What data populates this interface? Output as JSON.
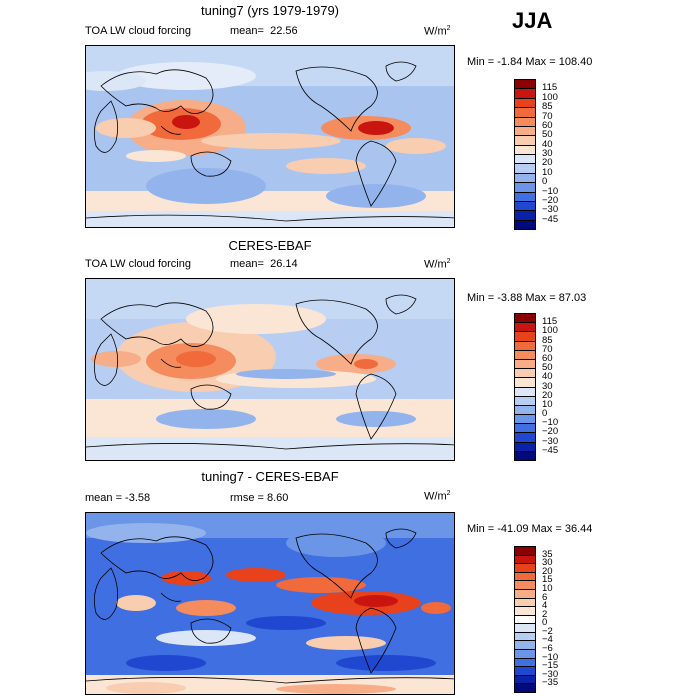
{
  "season": "JJA",
  "panels": [
    {
      "id": "model",
      "title": "tuning7 (yrs 1979-1979)",
      "left_label": "TOA LW cloud forcing",
      "mean_label": "mean=",
      "mean_value": "22.56",
      "units": "W/m",
      "units_sup": "2",
      "minmax": "Min =  -1.84 Max = 108.40"
    },
    {
      "id": "obs",
      "title": "CERES-EBAF",
      "left_label": "TOA LW cloud forcing",
      "mean_label": "mean=",
      "mean_value": "26.14",
      "units": "W/m",
      "units_sup": "2",
      "minmax": "Min =  -3.88 Max =  87.03"
    },
    {
      "id": "diff",
      "title": "tuning7 - CERES-EBAF",
      "left_label": "mean =   -3.58",
      "rmse_label": "rmse =    8.60",
      "units": "W/m",
      "units_sup": "2",
      "minmax": "Min = -41.09 Max =  36.44"
    }
  ],
  "colorbars": {
    "abs_levels": [
      "115",
      "100",
      "85",
      "70",
      "60",
      "50",
      "40",
      "30",
      "20",
      "10",
      "0",
      "−10",
      "−20",
      "−30",
      "−45"
    ],
    "abs_colors": [
      "#8b0000",
      "#c8150f",
      "#e8421c",
      "#f06a3c",
      "#f58c5e",
      "#f7ad87",
      "#f9cdb0",
      "#fbe6d6",
      "#dbe6f7",
      "#b7cdf2",
      "#93b3ec",
      "#6b95e6",
      "#3f6fe0",
      "#1f47d0",
      "#0a22a8",
      "#000a7a"
    ],
    "diff_levels": [
      "35",
      "30",
      "20",
      "15",
      "10",
      "6",
      "4",
      "2",
      "0",
      "−2",
      "−4",
      "−6",
      "−10",
      "−15",
      "−30",
      "−35"
    ],
    "diff_colors": [
      "#8b0000",
      "#c8150f",
      "#e8421c",
      "#f06a3c",
      "#f58c5e",
      "#f7ad87",
      "#f9cdb0",
      "#fbe6d6",
      "#ffffff",
      "#dbe6f7",
      "#b7cdf2",
      "#93b3ec",
      "#6b95e6",
      "#3f6fe0",
      "#1f47d0",
      "#0a22a8",
      "#000a7a"
    ]
  },
  "chart_data": [
    {
      "type": "heatmap",
      "title": "tuning7 (yrs 1979-1979)",
      "variable": "TOA LW cloud forcing",
      "units": "W/m2",
      "mean": 22.56,
      "min": -1.84,
      "max": 108.4,
      "contour_levels": [
        -45,
        -30,
        -20,
        -10,
        0,
        10,
        20,
        30,
        40,
        50,
        60,
        70,
        85,
        100,
        115
      ]
    },
    {
      "type": "heatmap",
      "title": "CERES-EBAF",
      "variable": "TOA LW cloud forcing",
      "units": "W/m2",
      "mean": 26.14,
      "min": -3.88,
      "max": 87.03,
      "contour_levels": [
        -45,
        -30,
        -20,
        -10,
        0,
        10,
        20,
        30,
        40,
        50,
        60,
        70,
        85,
        100,
        115
      ]
    },
    {
      "type": "heatmap",
      "title": "tuning7 - CERES-EBAF",
      "units": "W/m2",
      "mean": -3.58,
      "rmse": 8.6,
      "min": -41.09,
      "max": 36.44,
      "contour_levels": [
        -35,
        -30,
        -15,
        -10,
        -6,
        -4,
        -2,
        0,
        2,
        4,
        6,
        10,
        15,
        20,
        30,
        35
      ]
    }
  ]
}
